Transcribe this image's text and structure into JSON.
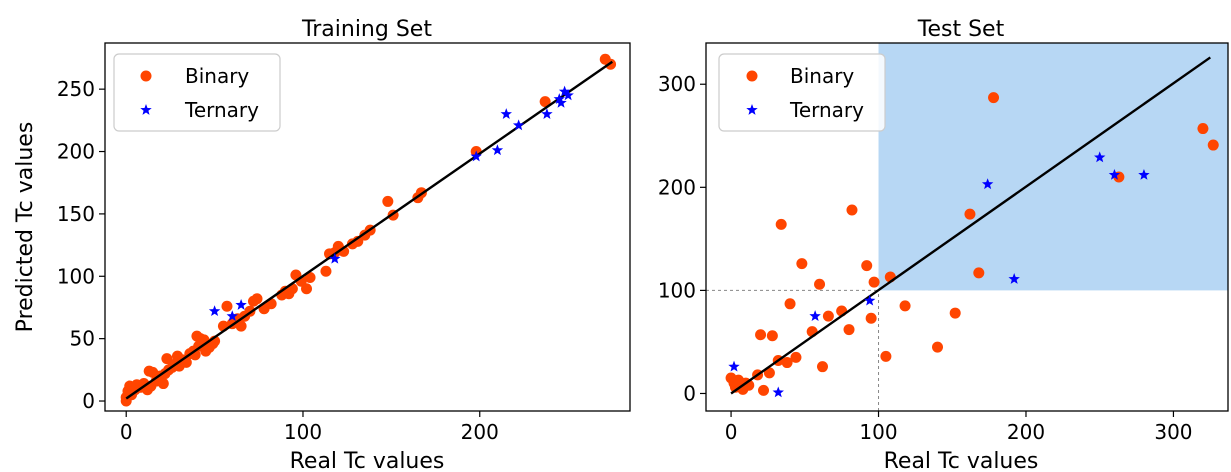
{
  "chart_data": [
    {
      "type": "scatter",
      "title": "Training Set",
      "xlabel": "Real Tc values",
      "ylabel": "Predicted Tc values",
      "xlim": [
        -12,
        285
      ],
      "ylim": [
        -8,
        287
      ],
      "xticks": [
        0,
        100,
        200
      ],
      "yticks": [
        0,
        50,
        100,
        150,
        200,
        250
      ],
      "grid": false,
      "legend": {
        "placement": "top-left",
        "entries": [
          "Binary",
          "Ternary"
        ]
      },
      "fit_line": {
        "from": [
          0,
          2
        ],
        "to": [
          275,
          272
        ]
      },
      "series": [
        {
          "name": "Binary",
          "marker": "circle",
          "color": "#ff4500",
          "points": [
            [
              0,
              0
            ],
            [
              0,
              3
            ],
            [
              1,
              8
            ],
            [
              2,
              12
            ],
            [
              3,
              5
            ],
            [
              4,
              10
            ],
            [
              5,
              9
            ],
            [
              6,
              13
            ],
            [
              8,
              11
            ],
            [
              10,
              14
            ],
            [
              12,
              9
            ],
            [
              13,
              24
            ],
            [
              14,
              12
            ],
            [
              15,
              23
            ],
            [
              17,
              16
            ],
            [
              19,
              20
            ],
            [
              21,
              14
            ],
            [
              22,
              22
            ],
            [
              23,
              34
            ],
            [
              24,
              25
            ],
            [
              26,
              27
            ],
            [
              28,
              30
            ],
            [
              29,
              36
            ],
            [
              30,
              28
            ],
            [
              32,
              33
            ],
            [
              34,
              31
            ],
            [
              36,
              38
            ],
            [
              38,
              40
            ],
            [
              39,
              37
            ],
            [
              40,
              52
            ],
            [
              41,
              44
            ],
            [
              42,
              50
            ],
            [
              44,
              49
            ],
            [
              45,
              40
            ],
            [
              47,
              43
            ],
            [
              49,
              46
            ],
            [
              50,
              48
            ],
            [
              55,
              60
            ],
            [
              57,
              76
            ],
            [
              60,
              62
            ],
            [
              63,
              66
            ],
            [
              65,
              60
            ],
            [
              67,
              68
            ],
            [
              70,
              72
            ],
            [
              72,
              80
            ],
            [
              74,
              82
            ],
            [
              78,
              74
            ],
            [
              82,
              78
            ],
            [
              88,
              85
            ],
            [
              90,
              88
            ],
            [
              92,
              86
            ],
            [
              94,
              90
            ],
            [
              96,
              101
            ],
            [
              99,
              96
            ],
            [
              102,
              90
            ],
            [
              104,
              99
            ],
            [
              113,
              104
            ],
            [
              115,
              118
            ],
            [
              118,
              119
            ],
            [
              120,
              124
            ],
            [
              123,
              120
            ],
            [
              128,
              126
            ],
            [
              131,
              128
            ],
            [
              135,
              133
            ],
            [
              138,
              137
            ],
            [
              148,
              160
            ],
            [
              151,
              149
            ],
            [
              165,
              163
            ],
            [
              167,
              167
            ],
            [
              198,
              200
            ],
            [
              237,
              240
            ],
            [
              271,
              274
            ],
            [
              274,
              270
            ]
          ]
        },
        {
          "name": "Ternary",
          "marker": "star",
          "color": "#0000ff",
          "points": [
            [
              50,
              72
            ],
            [
              60,
              68
            ],
            [
              65,
              77
            ],
            [
              118,
              114
            ],
            [
              198,
              196
            ],
            [
              210,
              201
            ],
            [
              215,
              230
            ],
            [
              222,
              221
            ],
            [
              238,
              230
            ],
            [
              245,
              242
            ],
            [
              246,
              239
            ],
            [
              248,
              248
            ],
            [
              250,
              245
            ]
          ]
        }
      ]
    },
    {
      "type": "scatter",
      "title": "Test Set",
      "xlabel": "Real Tc values",
      "ylabel": "",
      "xlim": [
        -17,
        337
      ],
      "ylim": [
        -17,
        340
      ],
      "xticks": [
        0,
        100,
        200,
        300
      ],
      "yticks": [
        0,
        100,
        200,
        300
      ],
      "grid": false,
      "legend": {
        "placement": "top-left",
        "entries": [
          "Binary",
          "Ternary"
        ]
      },
      "fit_line": {
        "from": [
          0,
          0
        ],
        "to": [
          325,
          326
        ]
      },
      "shaded_region": {
        "x": [
          100,
          337
        ],
        "y": [
          100,
          340
        ],
        "color": "#b7d7f4"
      },
      "threshold_lines": {
        "x": 100,
        "y": 100
      },
      "series": [
        {
          "name": "Binary",
          "marker": "circle",
          "color": "#ff4500",
          "points": [
            [
              0,
              15
            ],
            [
              2,
              10
            ],
            [
              3,
              6
            ],
            [
              5,
              13
            ],
            [
              8,
              4
            ],
            [
              10,
              10
            ],
            [
              12,
              8
            ],
            [
              18,
              18
            ],
            [
              20,
              57
            ],
            [
              22,
              3
            ],
            [
              26,
              20
            ],
            [
              28,
              56
            ],
            [
              32,
              32
            ],
            [
              34,
              164
            ],
            [
              38,
              30
            ],
            [
              40,
              87
            ],
            [
              44,
              35
            ],
            [
              48,
              126
            ],
            [
              55,
              60
            ],
            [
              60,
              106
            ],
            [
              62,
              26
            ],
            [
              66,
              75
            ],
            [
              75,
              80
            ],
            [
              80,
              62
            ],
            [
              82,
              178
            ],
            [
              92,
              124
            ],
            [
              95,
              73
            ],
            [
              97,
              108
            ],
            [
              105,
              36
            ],
            [
              108,
              113
            ],
            [
              118,
              85
            ],
            [
              140,
              45
            ],
            [
              152,
              78
            ],
            [
              162,
              174
            ],
            [
              168,
              117
            ],
            [
              178,
              287
            ],
            [
              263,
              210
            ],
            [
              320,
              257
            ],
            [
              327,
              241
            ]
          ]
        },
        {
          "name": "Ternary",
          "marker": "star",
          "color": "#0000ff",
          "points": [
            [
              2,
              26
            ],
            [
              32,
              1
            ],
            [
              57,
              75
            ],
            [
              94,
              90
            ],
            [
              174,
              203
            ],
            [
              192,
              111
            ],
            [
              250,
              229
            ],
            [
              260,
              212
            ],
            [
              280,
              212
            ]
          ]
        }
      ]
    }
  ]
}
